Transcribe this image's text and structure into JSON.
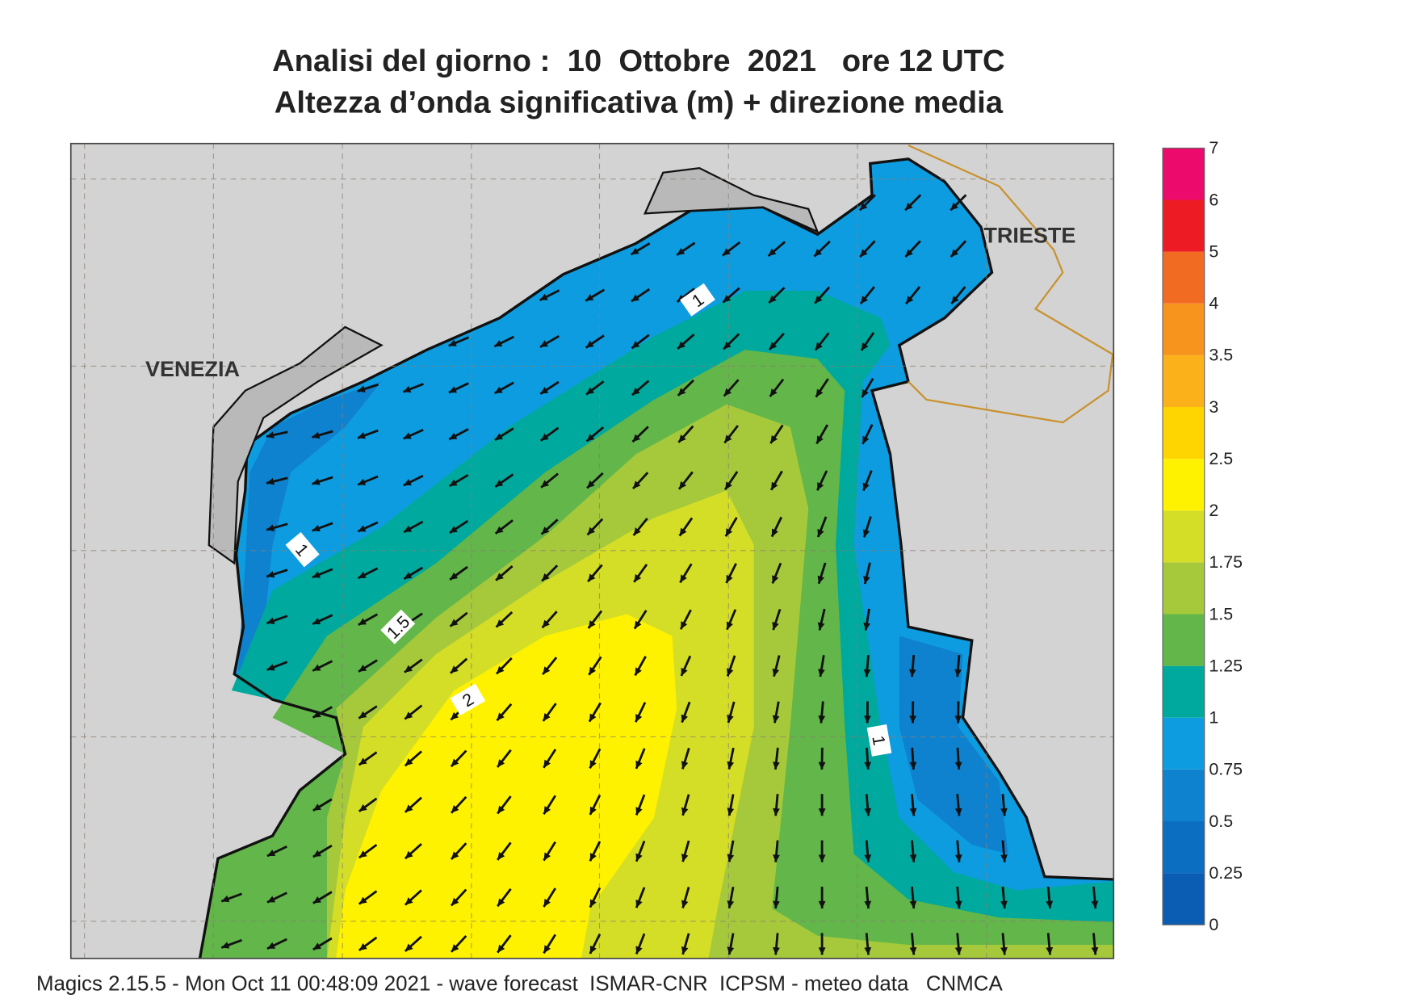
{
  "header": {
    "title_line1": "Analisi del giorno :  10  Ottobre  2021   ore 12 UTC",
    "title_line2": "Altezza d’onda significativa (m) + direzione media"
  },
  "map": {
    "places": [
      "VENEZIA",
      "TRIESTE"
    ],
    "contour_labels": [
      1,
      1,
      1.5,
      2,
      1
    ]
  },
  "legend": {
    "levels": [
      0,
      0.25,
      0.5,
      0.75,
      1,
      1.25,
      1.5,
      1.75,
      2,
      2.5,
      3,
      3.5,
      4,
      5,
      6,
      7
    ],
    "colors": [
      "#0a5db3",
      "#0b6ec0",
      "#0f82cf",
      "#0e9ce0",
      "#00a99e",
      "#62b64a",
      "#a5c93b",
      "#d4de26",
      "#fff200",
      "#ffd500",
      "#fbb21a",
      "#f7941e",
      "#f26b22",
      "#ed1c24",
      "#ec0b6c"
    ]
  },
  "footer": "Magics 2.15.5 - Mon Oct 11 00:48:09 2021 - wave forecast  ISMAR-CNR  ICPSM - meteo data   CNMCA"
}
